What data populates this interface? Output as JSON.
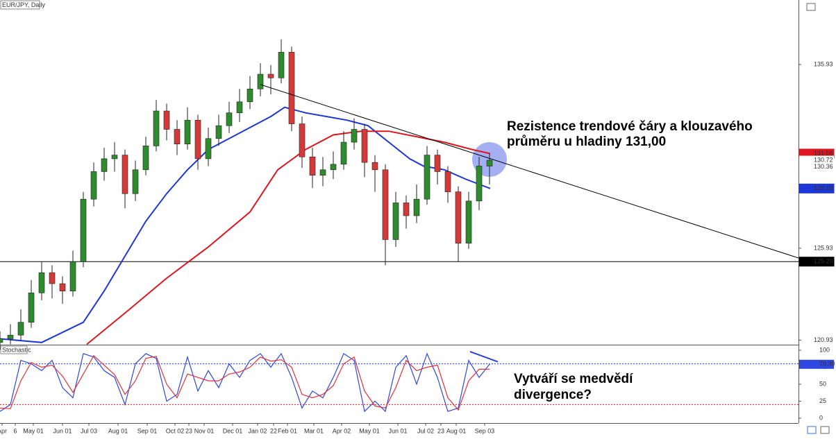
{
  "chart_data": [
    {
      "type": "candlestick",
      "title": "EUR/JPY, Daily",
      "x": [
        0,
        3,
        6,
        9,
        12,
        15,
        18,
        21,
        24,
        27,
        30,
        33,
        36,
        39,
        42,
        45,
        48,
        51,
        54,
        57,
        60,
        63,
        66,
        69,
        72,
        75,
        78,
        81,
        84,
        87,
        90,
        93,
        96,
        99,
        102,
        105,
        108,
        111,
        114,
        117,
        120,
        123,
        126,
        129,
        132,
        135,
        138,
        141
      ],
      "open": [
        120.8,
        121.0,
        121.2,
        121.9,
        123.5,
        124.6,
        124.0,
        123.6,
        125.2,
        128.6,
        130.1,
        130.8,
        131.0,
        128.9,
        130.2,
        131.5,
        133.4,
        132.4,
        131.6,
        132.9,
        130.8,
        131.9,
        132.6,
        133.3,
        133.9,
        134.6,
        135.4,
        135.2,
        136.6,
        132.7,
        130.9,
        129.9,
        130.2,
        130.5,
        131.7,
        132.4,
        130.6,
        130.2,
        126.4,
        128.4,
        127.7,
        128.6,
        131.0,
        130.1,
        129.0,
        126.2,
        128.5,
        130.4
      ],
      "high": [
        121.4,
        121.8,
        122.6,
        124.2,
        125.2,
        125.0,
        124.4,
        125.8,
        129.0,
        130.6,
        131.4,
        131.7,
        131.3,
        130.7,
        132.0,
        134.0,
        133.8,
        132.9,
        133.6,
        133.2,
        132.5,
        133.2,
        133.9,
        134.6,
        135.3,
        136.0,
        135.9,
        137.3,
        136.9,
        133.1,
        131.4,
        130.9,
        131.2,
        132.3,
        133.0,
        132.7,
        131.0,
        130.5,
        129.0,
        128.8,
        129.4,
        131.5,
        131.3,
        130.4,
        129.3,
        129.0,
        130.9,
        131.08
      ],
      "low": [
        120.4,
        120.7,
        120.9,
        121.6,
        123.1,
        123.2,
        122.9,
        123.3,
        124.9,
        128.2,
        129.6,
        130.1,
        128.1,
        128.5,
        129.9,
        131.2,
        131.8,
        131.0,
        131.3,
        130.2,
        130.4,
        131.5,
        132.2,
        132.8,
        133.5,
        134.2,
        134.3,
        134.9,
        132.3,
        130.3,
        129.2,
        129.3,
        129.7,
        130.2,
        131.3,
        129.8,
        129.0,
        125.0,
        126.0,
        127.0,
        127.3,
        128.3,
        129.4,
        128.4,
        125.2,
        125.9,
        128.0,
        129.4
      ],
      "close": [
        121.0,
        121.2,
        121.9,
        123.5,
        124.6,
        124.0,
        123.6,
        125.2,
        128.6,
        130.1,
        130.8,
        131.0,
        128.9,
        130.2,
        131.5,
        133.4,
        132.4,
        131.6,
        132.9,
        130.8,
        131.9,
        132.6,
        133.3,
        133.9,
        134.6,
        135.4,
        135.2,
        136.6,
        132.7,
        130.9,
        129.9,
        130.2,
        130.5,
        131.7,
        132.4,
        130.6,
        130.2,
        126.4,
        128.4,
        127.7,
        128.6,
        131.0,
        130.1,
        129.0,
        126.2,
        128.5,
        130.4,
        130.72
      ],
      "up_color": "#2e8b2e",
      "down_color": "#d43a3a",
      "xlim": [
        0,
        230
      ],
      "ylim": [
        120.68,
        139.44
      ],
      "yticks": [
        135.93,
        125.93,
        120.93
      ],
      "xticks": [
        {
          "value": 0.6,
          "label": "Apr"
        },
        {
          "value": 4.4,
          "label": "6"
        },
        {
          "value": 9.6,
          "label": "May 01"
        },
        {
          "value": 18,
          "label": "Jun 01"
        },
        {
          "value": 25.6,
          "label": "Jul 03"
        },
        {
          "value": 34,
          "label": "Aug 01"
        },
        {
          "value": 42.4,
          "label": "Sep 01"
        },
        {
          "value": 50.4,
          "label": "Oct 02"
        },
        {
          "value": 54.4,
          "label": "23"
        },
        {
          "value": 58.8,
          "label": "Nov 01"
        },
        {
          "value": 67,
          "label": "Dec 01"
        },
        {
          "value": 74.2,
          "label": "Jan 02"
        },
        {
          "value": 78.8,
          "label": "22"
        },
        {
          "value": 82.8,
          "label": "Feb 01"
        },
        {
          "value": 90.4,
          "label": "Mar 01"
        },
        {
          "value": 98.4,
          "label": "Apr 02"
        },
        {
          "value": 106.4,
          "label": "May 01"
        },
        {
          "value": 114.6,
          "label": "Jun 01"
        },
        {
          "value": 122.6,
          "label": "Jul 02"
        },
        {
          "value": 127,
          "label": "23"
        },
        {
          "value": 131.4,
          "label": "Aug 01"
        },
        {
          "value": 139.6,
          "label": "Sep 03"
        }
      ],
      "moving_averages": [
        {
          "color": "#1c36d8",
          "x": [
            0,
            12,
            24,
            30,
            36,
            42,
            48,
            54,
            60,
            66,
            72,
            78,
            82,
            88,
            94,
            100,
            106,
            112,
            118,
            122,
            128,
            134,
            141.2
          ],
          "values": [
            121.0,
            120.8,
            121.9,
            123.6,
            125.5,
            127.4,
            128.9,
            130.2,
            131.3,
            131.9,
            132.5,
            133.1,
            133.6,
            133.3,
            133.1,
            132.9,
            132.6,
            131.7,
            130.8,
            130.4,
            130.2,
            129.7,
            129.18
          ]
        },
        {
          "color": "#e0141e",
          "x": [
            25,
            36,
            48,
            60,
            72,
            80,
            88,
            96,
            104,
            112,
            120,
            128,
            136,
            141.2
          ],
          "values": [
            120.7,
            122.4,
            124.3,
            126.0,
            127.9,
            130.2,
            131.3,
            132.1,
            132.3,
            132.3,
            132.0,
            131.7,
            131.3,
            131.08
          ]
        }
      ],
      "trendline": {
        "x": [
          75,
          230
        ],
        "values": [
          134.84,
          125.4
        ]
      },
      "price_labels": [
        {
          "value": 131.08,
          "background": "#e0141e",
          "color": "#ffffff"
        },
        {
          "value": 130.72,
          "background": "#ffffff",
          "color": "#000000"
        },
        {
          "value": 130.36,
          "background": "#ffffff",
          "color": "#000000"
        },
        {
          "value": 129.18,
          "background": "#1c36d8",
          "color": "#ffffff"
        },
        {
          "value": {
            "value": 125.2,
            "label": "125.20"
          },
          "background": "#000000",
          "color": "#ffffff",
          "line": true
        }
      ],
      "annotation": [
        "Rezistence trendové čáry a klouzavého",
        "průměru u hladiny 131,00"
      ]
    },
    {
      "type": "line",
      "title": "Stochastic",
      "series": [
        {
          "color": "#3046e0",
          "values": [
            10,
            20,
            85,
            80,
            70,
            85,
            45,
            30,
            95,
            90,
            70,
            60,
            20,
            80,
            95,
            88,
            25,
            35,
            90,
            40,
            70,
            45,
            80,
            60,
            85,
            95,
            75,
            95,
            60,
            15,
            40,
            30,
            60,
            95,
            85,
            10,
            25,
            10,
            75,
            92,
            50,
            95,
            60,
            10,
            15,
            85,
            60,
            79.3
          ]
        },
        {
          "color": "#e0303a",
          "values": [
            15,
            14,
            55,
            82,
            75,
            78,
            62,
            38,
            65,
            92,
            78,
            64,
            35,
            55,
            88,
            91,
            50,
            30,
            65,
            60,
            55,
            55,
            65,
            68,
            75,
            90,
            84,
            86,
            75,
            35,
            30,
            35,
            48,
            80,
            90,
            40,
            18,
            15,
            45,
            85,
            70,
            75,
            78,
            30,
            12,
            55,
            72,
            72
          ]
        }
      ],
      "ylim": [
        0,
        100
      ],
      "yticks": [
        100,
        75,
        50,
        25,
        0
      ],
      "levels": [
        {
          "value": 80,
          "color": "#1c36d8"
        },
        {
          "value": 20,
          "color": "#e0141e"
        }
      ],
      "last_label": {
        "value": 79.3,
        "label": "79.30"
      },
      "divergence_line": {
        "x": [
          135.4,
          143.4
        ],
        "values": [
          98,
          83
        ]
      },
      "annotation": [
        "Vytváří se medvědí",
        "divergence?"
      ]
    }
  ]
}
